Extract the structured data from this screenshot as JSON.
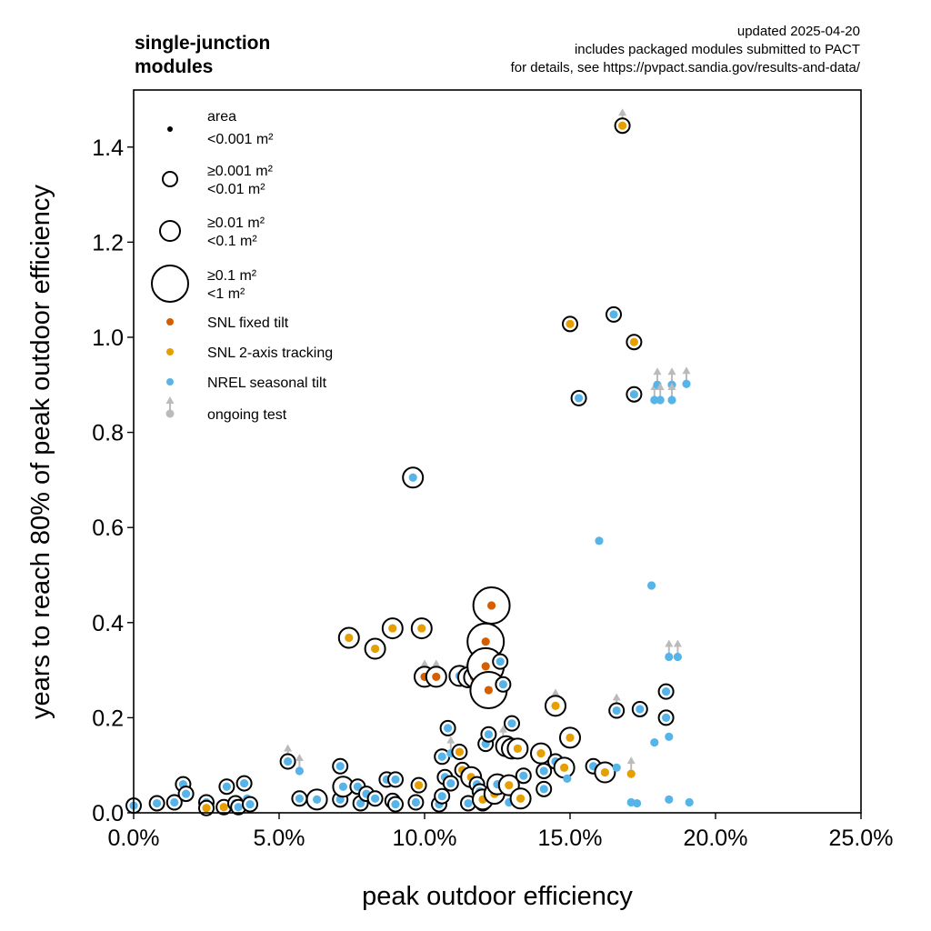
{
  "chart_data": {
    "type": "scatter",
    "title": "single-junction\nmodules",
    "notes": [
      "updated 2025-04-20",
      "includes packaged modules submitted to PACT",
      "for details, see https://pvpact.sandia.gov/results-and-data/"
    ],
    "xlabel": "peak outdoor efficiency",
    "ylabel": "years to reach 80% of peak outdoor efficiency",
    "xlim": [
      0,
      0.25
    ],
    "ylim": [
      0,
      1.52
    ],
    "xticks": [
      0,
      0.05,
      0.1,
      0.15,
      0.2,
      0.25
    ],
    "xtick_labels": [
      "0.0%",
      "5.0%",
      "10.0%",
      "15.0%",
      "20.0%",
      "25.0%"
    ],
    "yticks": [
      0,
      0.2,
      0.4,
      0.6,
      0.8,
      1.0,
      1.2,
      1.4
    ],
    "ytick_labels": [
      "0.0",
      "0.2",
      "0.4",
      "0.6",
      "0.8",
      "1.0",
      "1.2",
      "1.4"
    ],
    "grid": false,
    "legend_position": "top-left",
    "legend": {
      "area_title": "area",
      "sizes": [
        {
          "line1": "",
          "line2": "<0.001 m²",
          "size": 0
        },
        {
          "line1": "≥0.001 m²",
          "line2": "<0.01 m²",
          "size": 1
        },
        {
          "line1": "≥0.01 m²",
          "line2": "<0.1 m²",
          "size": 2
        },
        {
          "line1": "≥0.1 m²",
          "line2": "<1 m²",
          "size": 3
        }
      ],
      "series": [
        {
          "label": "SNL fixed tilt",
          "color": "#d55e00"
        },
        {
          "label": "SNL 2-axis tracking",
          "color": "#e69f00"
        },
        {
          "label": "NREL seasonal tilt",
          "color": "#56b4e9"
        }
      ],
      "ongoing_label": "ongoing test"
    },
    "colors": {
      "snl_fixed": "#d55e00",
      "snl_2axis": "#e69f00",
      "nrel": "#56b4e9",
      "ongoing": "#bbbbbb"
    },
    "point_fields": [
      "efficiency",
      "years",
      "series",
      "area_class",
      "ongoing"
    ],
    "points": [
      [
        0.0,
        0.015,
        "nrel",
        1,
        0
      ],
      [
        0.008,
        0.02,
        "nrel",
        1,
        0
      ],
      [
        0.014,
        0.022,
        "nrel",
        1,
        0
      ],
      [
        0.017,
        0.06,
        "nrel",
        1,
        0
      ],
      [
        0.018,
        0.04,
        "nrel",
        1,
        0
      ],
      [
        0.025,
        0.022,
        "nrel",
        1,
        0
      ],
      [
        0.025,
        0.01,
        "snl_2axis",
        1,
        0
      ],
      [
        0.031,
        0.012,
        "snl_2axis",
        1,
        0
      ],
      [
        0.032,
        0.055,
        "nrel",
        1,
        0
      ],
      [
        0.035,
        0.02,
        "nrel",
        1,
        0
      ],
      [
        0.036,
        0.012,
        "nrel",
        1,
        0
      ],
      [
        0.038,
        0.062,
        "nrel",
        1,
        0
      ],
      [
        0.039,
        0.03,
        "nrel",
        0,
        0
      ],
      [
        0.04,
        0.018,
        "nrel",
        1,
        0
      ],
      [
        0.053,
        0.108,
        "nrel",
        1,
        1
      ],
      [
        0.057,
        0.088,
        "nrel",
        0,
        1
      ],
      [
        0.057,
        0.03,
        "nrel",
        1,
        0
      ],
      [
        0.063,
        0.028,
        "nrel",
        2,
        0
      ],
      [
        0.071,
        0.098,
        "nrel",
        1,
        0
      ],
      [
        0.071,
        0.028,
        "nrel",
        1,
        0
      ],
      [
        0.072,
        0.055,
        "nrel",
        2,
        0
      ],
      [
        0.074,
        0.368,
        "snl_2axis",
        2,
        0
      ],
      [
        0.077,
        0.055,
        "nrel",
        1,
        0
      ],
      [
        0.078,
        0.02,
        "nrel",
        1,
        0
      ],
      [
        0.08,
        0.04,
        "nrel",
        1,
        0
      ],
      [
        0.083,
        0.03,
        "nrel",
        1,
        0
      ],
      [
        0.083,
        0.345,
        "snl_2axis",
        2,
        0
      ],
      [
        0.087,
        0.07,
        "nrel",
        1,
        0
      ],
      [
        0.089,
        0.388,
        "snl_2axis",
        2,
        0
      ],
      [
        0.089,
        0.025,
        "nrel",
        1,
        0
      ],
      [
        0.09,
        0.018,
        "nrel",
        1,
        0
      ],
      [
        0.09,
        0.07,
        "nrel",
        1,
        0
      ],
      [
        0.096,
        0.705,
        "nrel",
        2,
        0
      ],
      [
        0.097,
        0.022,
        "nrel",
        1,
        0
      ],
      [
        0.098,
        0.058,
        "snl_2axis",
        1,
        0
      ],
      [
        0.099,
        0.388,
        "snl_2axis",
        2,
        0
      ],
      [
        0.1,
        0.286,
        "snl_fixed",
        2,
        1
      ],
      [
        0.104,
        0.286,
        "snl_fixed",
        2,
        1
      ],
      [
        0.105,
        0.018,
        "nrel",
        1,
        0
      ],
      [
        0.106,
        0.118,
        "nrel",
        1,
        0
      ],
      [
        0.106,
        0.035,
        "nrel",
        1,
        0
      ],
      [
        0.107,
        0.075,
        "nrel",
        1,
        0
      ],
      [
        0.108,
        0.178,
        "nrel",
        1,
        0
      ],
      [
        0.109,
        0.125,
        "nrel",
        0,
        1
      ],
      [
        0.109,
        0.062,
        "nrel",
        1,
        0
      ],
      [
        0.112,
        0.288,
        "nrel",
        2,
        0
      ],
      [
        0.112,
        0.128,
        "snl_2axis",
        1,
        0
      ],
      [
        0.113,
        0.09,
        "snl_2axis",
        1,
        0
      ],
      [
        0.115,
        0.02,
        "nrel",
        1,
        0
      ],
      [
        0.115,
        0.285,
        "snl_fixed",
        2,
        1
      ],
      [
        0.116,
        0.075,
        "snl_2axis",
        2,
        0
      ],
      [
        0.117,
        0.285,
        "snl_fixed",
        2,
        1
      ],
      [
        0.118,
        0.06,
        "nrel",
        1,
        0
      ],
      [
        0.119,
        0.045,
        "nrel",
        1,
        0
      ],
      [
        0.12,
        0.02,
        "nrel",
        1,
        0
      ],
      [
        0.12,
        0.382,
        "nrel",
        1,
        0
      ],
      [
        0.12,
        0.028,
        "snl_2axis",
        2,
        0
      ],
      [
        0.121,
        0.145,
        "nrel",
        1,
        0
      ],
      [
        0.121,
        0.36,
        "snl_fixed",
        3,
        0
      ],
      [
        0.121,
        0.308,
        "snl_fixed",
        3,
        0
      ],
      [
        0.122,
        0.258,
        "snl_fixed",
        3,
        0
      ],
      [
        0.122,
        0.165,
        "nrel",
        1,
        0
      ],
      [
        0.123,
        0.436,
        "snl_fixed",
        3,
        0
      ],
      [
        0.124,
        0.04,
        "snl_2axis",
        2,
        0
      ],
      [
        0.125,
        0.06,
        "nrel",
        2,
        0
      ],
      [
        0.126,
        0.318,
        "nrel",
        1,
        0
      ],
      [
        0.127,
        0.27,
        "nrel",
        1,
        0
      ],
      [
        0.127,
        0.148,
        "nrel",
        0,
        1
      ],
      [
        0.128,
        0.14,
        "snl_2axis",
        2,
        0
      ],
      [
        0.129,
        0.058,
        "snl_2axis",
        2,
        0
      ],
      [
        0.129,
        0.022,
        "nrel",
        0,
        0
      ],
      [
        0.13,
        0.188,
        "nrel",
        1,
        0
      ],
      [
        0.13,
        0.135,
        "snl_2axis",
        2,
        0
      ],
      [
        0.132,
        0.135,
        "snl_2axis",
        2,
        0
      ],
      [
        0.133,
        0.03,
        "snl_2axis",
        2,
        0
      ],
      [
        0.134,
        0.078,
        "nrel",
        1,
        0
      ],
      [
        0.14,
        0.125,
        "snl_2axis",
        2,
        0
      ],
      [
        0.141,
        0.088,
        "nrel",
        1,
        0
      ],
      [
        0.141,
        0.05,
        "nrel",
        1,
        0
      ],
      [
        0.145,
        0.225,
        "snl_2axis",
        2,
        1
      ],
      [
        0.145,
        0.108,
        "nrel",
        1,
        0
      ],
      [
        0.148,
        0.095,
        "snl_2axis",
        2,
        0
      ],
      [
        0.149,
        0.072,
        "nrel",
        0,
        0
      ],
      [
        0.15,
        0.158,
        "snl_2axis",
        2,
        0
      ],
      [
        0.15,
        1.028,
        "snl_2axis",
        1,
        0
      ],
      [
        0.153,
        0.872,
        "nrel",
        1,
        0
      ],
      [
        0.158,
        0.098,
        "nrel",
        1,
        0
      ],
      [
        0.16,
        0.572,
        "nrel",
        0,
        0
      ],
      [
        0.162,
        0.085,
        "snl_2axis",
        2,
        0
      ],
      [
        0.165,
        1.048,
        "nrel",
        1,
        0
      ],
      [
        0.166,
        0.215,
        "nrel",
        1,
        1
      ],
      [
        0.166,
        0.095,
        "nrel",
        0,
        0
      ],
      [
        0.168,
        1.445,
        "snl_2axis",
        1,
        1
      ],
      [
        0.171,
        0.082,
        "snl_2axis",
        0,
        1
      ],
      [
        0.171,
        0.022,
        "nrel",
        0,
        0
      ],
      [
        0.172,
        0.88,
        "nrel",
        1,
        0
      ],
      [
        0.172,
        0.99,
        "snl_2axis",
        1,
        0
      ],
      [
        0.173,
        0.02,
        "nrel",
        0,
        0
      ],
      [
        0.174,
        0.218,
        "nrel",
        1,
        0
      ],
      [
        0.178,
        0.478,
        "nrel",
        0,
        0
      ],
      [
        0.179,
        0.868,
        "nrel",
        0,
        1
      ],
      [
        0.179,
        0.148,
        "nrel",
        0,
        0
      ],
      [
        0.18,
        0.9,
        "nrel",
        0,
        1
      ],
      [
        0.181,
        0.868,
        "nrel",
        0,
        1
      ],
      [
        0.183,
        0.2,
        "nrel",
        1,
        0
      ],
      [
        0.183,
        0.255,
        "nrel",
        1,
        0
      ],
      [
        0.184,
        0.328,
        "nrel",
        0,
        1
      ],
      [
        0.184,
        0.16,
        "nrel",
        0,
        0
      ],
      [
        0.184,
        0.028,
        "nrel",
        0,
        0
      ],
      [
        0.185,
        0.9,
        "nrel",
        0,
        1
      ],
      [
        0.185,
        0.868,
        "nrel",
        0,
        1
      ],
      [
        0.187,
        0.328,
        "nrel",
        0,
        1
      ],
      [
        0.19,
        0.902,
        "nrel",
        0,
        1
      ],
      [
        0.191,
        0.022,
        "nrel",
        0,
        0
      ]
    ]
  }
}
